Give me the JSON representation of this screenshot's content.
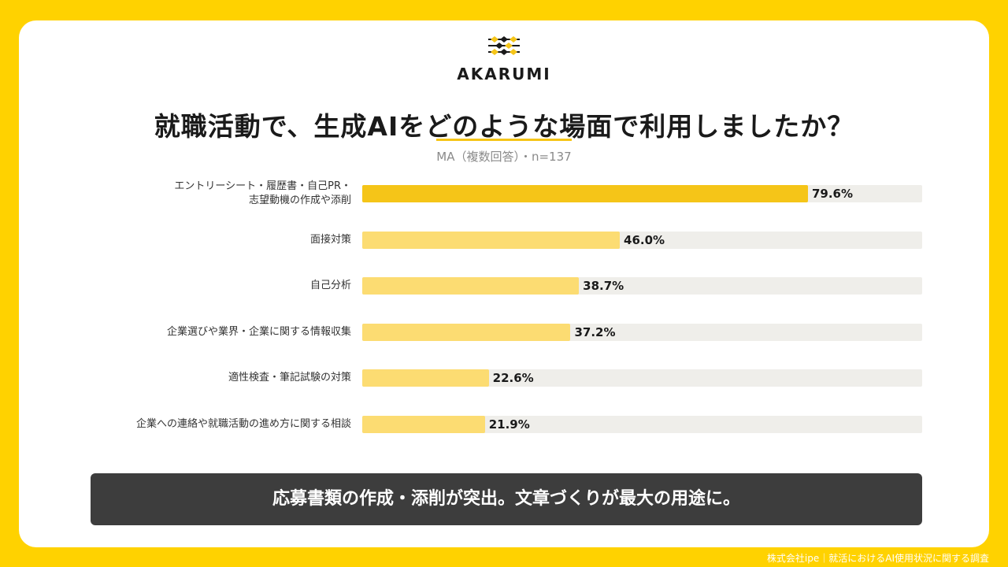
{
  "logo": {
    "name": "AKARUMI",
    "icon": "akarumi-lattice-icon"
  },
  "title": "就職活動で、生成AIをどのような場面で利用しましたか？",
  "subtitle": "MA（複数回答）・n=137",
  "chart_data": {
    "type": "bar",
    "orientation": "horizontal",
    "xlim": [
      0,
      100
    ],
    "categories": [
      [
        "エントリーシート・履歴書・自己PR・",
        "志望動機の作成や添削"
      ],
      [
        "面接対策"
      ],
      [
        "自己分析"
      ],
      [
        "企業選びや業界・企業に関する情報収集"
      ],
      [
        "適性検査・筆記試験の対策"
      ],
      [
        "企業への連絡や就職活動の進め方に関する相談"
      ]
    ],
    "values": [
      79.6,
      46.0,
      38.7,
      37.2,
      22.6,
      21.9
    ],
    "value_labels": [
      "79.6%",
      "46.0%",
      "38.7%",
      "37.2%",
      "22.6%",
      "21.9%"
    ],
    "colors": {
      "highlight": "#F5C518",
      "normal": "#FCDC72",
      "track": "#EFEEEA"
    },
    "highlight_index": 0
  },
  "callout": "応募書類の作成・添削が突出。文章づくりが最大の用途に。",
  "footer": "株式会社ipe｜就活におけるAI使用状況に関する調査"
}
